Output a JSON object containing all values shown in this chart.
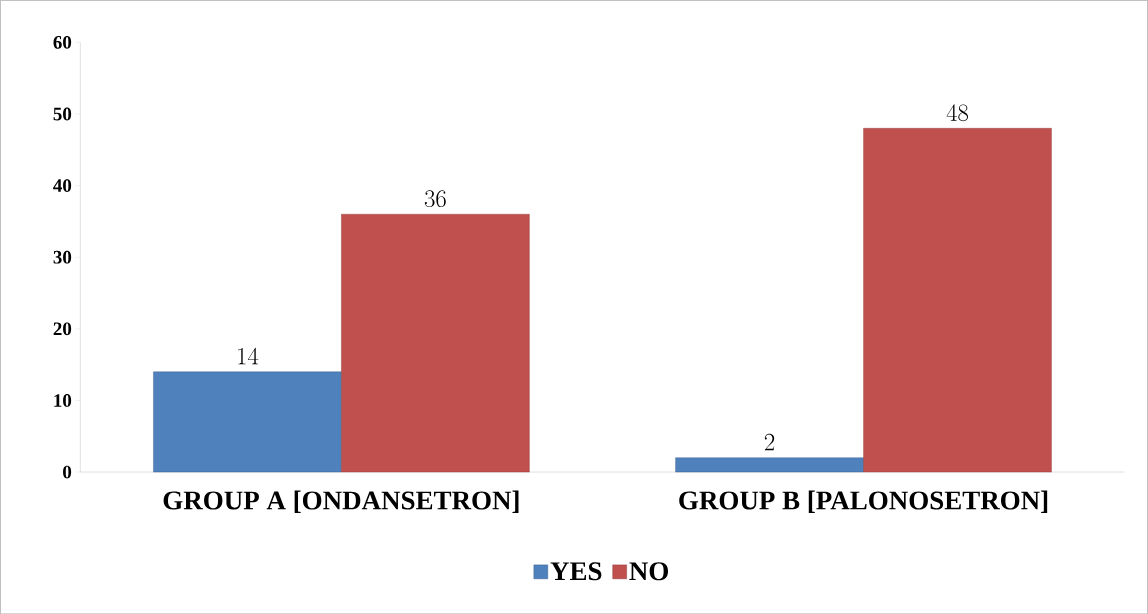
{
  "chart_data": {
    "type": "bar",
    "categories": [
      "GROUP A [ONDANSETRON]",
      "GROUP B [PALONOSETRON]"
    ],
    "series": [
      {
        "name": "YES",
        "color": "#4f81bd",
        "values": [
          14,
          2
        ]
      },
      {
        "name": "NO",
        "color": "#c0504d",
        "values": [
          36,
          48
        ]
      }
    ],
    "ylim": [
      0,
      60
    ],
    "yticks": [
      0,
      10,
      20,
      30,
      40,
      50,
      60
    ],
    "data_labels": true,
    "legend": "bottom"
  }
}
